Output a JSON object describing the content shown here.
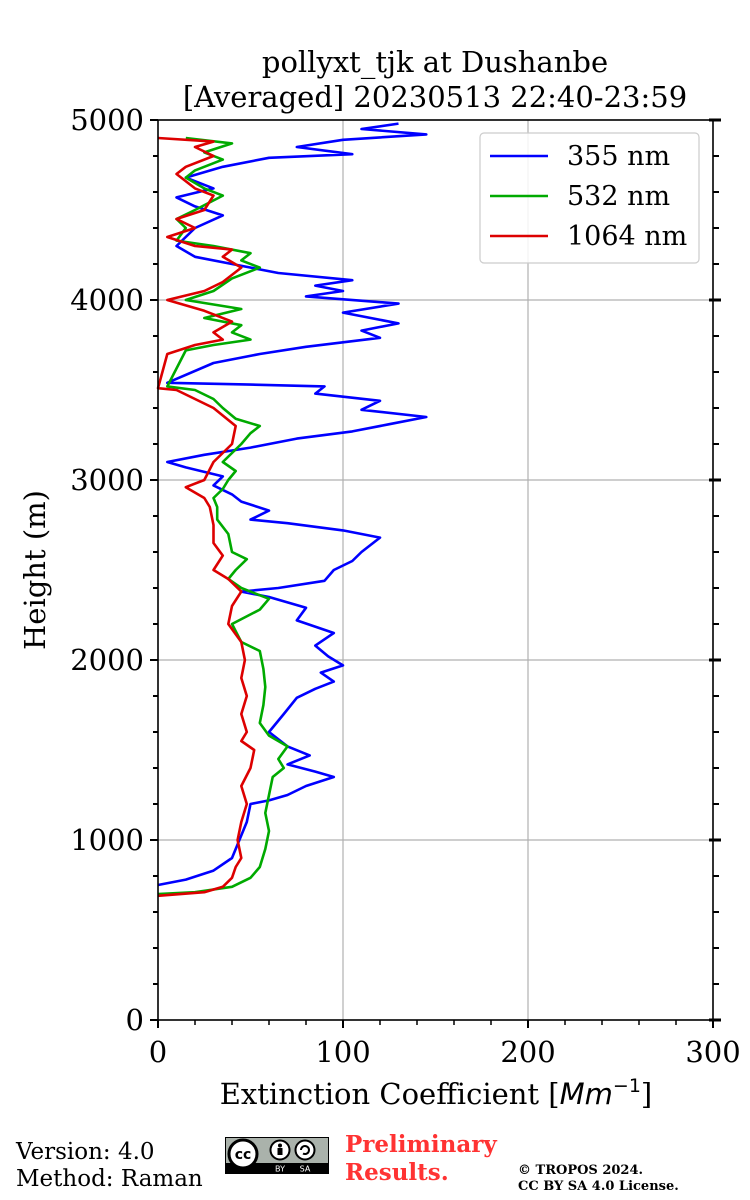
{
  "chart_data": {
    "type": "line",
    "title_line1": "pollyxt_tjk at Dushanbe",
    "title_line2": "[Averaged] 20230513 22:40-23:59",
    "xlabel_text": "Extinction Coefficient [",
    "xlabel_unit": "Mm",
    "xlabel_exp": "−1",
    "xlabel_close": "]",
    "ylabel": "Height (m)",
    "xlim": [
      0,
      300
    ],
    "ylim": [
      0,
      5000
    ],
    "xticks": [
      0,
      100,
      200,
      300
    ],
    "yticks": [
      0,
      1000,
      2000,
      3000,
      4000,
      5000
    ],
    "xtick_labels": [
      "0",
      "100",
      "200",
      "300"
    ],
    "ytick_labels": [
      "0",
      "1000",
      "2000",
      "3000",
      "4000",
      "5000"
    ],
    "y_minor_step": 200,
    "x_minor_step": 20,
    "grid": true,
    "legend_position": "top-right",
    "series": [
      {
        "name": "355 nm",
        "color": "#0000ff",
        "points": [
          [
            0,
            750
          ],
          [
            15,
            780
          ],
          [
            30,
            830
          ],
          [
            40,
            900
          ],
          [
            44,
            1000
          ],
          [
            48,
            1100
          ],
          [
            50,
            1200
          ],
          [
            60,
            1220
          ],
          [
            70,
            1250
          ],
          [
            80,
            1300
          ],
          [
            95,
            1350
          ],
          [
            85,
            1380
          ],
          [
            70,
            1420
          ],
          [
            82,
            1470
          ],
          [
            70,
            1520
          ],
          [
            60,
            1600
          ],
          [
            68,
            1700
          ],
          [
            75,
            1790
          ],
          [
            85,
            1840
          ],
          [
            95,
            1880
          ],
          [
            88,
            1930
          ],
          [
            100,
            1970
          ],
          [
            92,
            2020
          ],
          [
            85,
            2080
          ],
          [
            95,
            2150
          ],
          [
            75,
            2220
          ],
          [
            80,
            2290
          ],
          [
            60,
            2350
          ],
          [
            45,
            2380
          ],
          [
            65,
            2400
          ],
          [
            90,
            2440
          ],
          [
            95,
            2500
          ],
          [
            105,
            2550
          ],
          [
            110,
            2600
          ],
          [
            120,
            2680
          ],
          [
            100,
            2720
          ],
          [
            70,
            2760
          ],
          [
            50,
            2780
          ],
          [
            60,
            2830
          ],
          [
            45,
            2880
          ],
          [
            40,
            2920
          ],
          [
            30,
            2970
          ],
          [
            35,
            3020
          ],
          [
            15,
            3070
          ],
          [
            5,
            3100
          ],
          [
            25,
            3140
          ],
          [
            50,
            3180
          ],
          [
            75,
            3230
          ],
          [
            105,
            3270
          ],
          [
            125,
            3310
          ],
          [
            145,
            3350
          ],
          [
            110,
            3390
          ],
          [
            120,
            3440
          ],
          [
            85,
            3480
          ],
          [
            90,
            3520
          ],
          [
            50,
            3530
          ],
          [
            5,
            3540
          ],
          [
            30,
            3650
          ],
          [
            55,
            3700
          ],
          [
            80,
            3740
          ],
          [
            120,
            3790
          ],
          [
            110,
            3830
          ],
          [
            130,
            3870
          ],
          [
            100,
            3930
          ],
          [
            130,
            3980
          ],
          [
            80,
            4020
          ],
          [
            100,
            4050
          ],
          [
            85,
            4080
          ],
          [
            105,
            4110
          ],
          [
            65,
            4150
          ],
          [
            40,
            4200
          ],
          [
            20,
            4240
          ],
          [
            10,
            4300
          ],
          [
            20,
            4400
          ],
          [
            35,
            4470
          ],
          [
            20,
            4520
          ],
          [
            10,
            4570
          ],
          [
            30,
            4620
          ],
          [
            15,
            4680
          ],
          [
            35,
            4740
          ],
          [
            60,
            4790
          ],
          [
            105,
            4810
          ],
          [
            75,
            4850
          ],
          [
            100,
            4890
          ],
          [
            145,
            4920
          ],
          [
            110,
            4950
          ],
          [
            130,
            4980
          ]
        ]
      },
      {
        "name": "532 nm",
        "color": "#00aa00",
        "points": [
          [
            0,
            700
          ],
          [
            20,
            710
          ],
          [
            40,
            740
          ],
          [
            50,
            790
          ],
          [
            55,
            850
          ],
          [
            58,
            950
          ],
          [
            60,
            1050
          ],
          [
            58,
            1150
          ],
          [
            60,
            1250
          ],
          [
            62,
            1350
          ],
          [
            68,
            1400
          ],
          [
            65,
            1450
          ],
          [
            70,
            1520
          ],
          [
            60,
            1580
          ],
          [
            55,
            1650
          ],
          [
            57,
            1750
          ],
          [
            58,
            1850
          ],
          [
            57,
            1950
          ],
          [
            55,
            2050
          ],
          [
            45,
            2100
          ],
          [
            40,
            2200
          ],
          [
            55,
            2280
          ],
          [
            60,
            2340
          ],
          [
            50,
            2380
          ],
          [
            45,
            2400
          ],
          [
            38,
            2450
          ],
          [
            42,
            2500
          ],
          [
            48,
            2560
          ],
          [
            40,
            2600
          ],
          [
            38,
            2700
          ],
          [
            32,
            2780
          ],
          [
            32,
            2850
          ],
          [
            30,
            2900
          ],
          [
            35,
            2950
          ],
          [
            38,
            3000
          ],
          [
            42,
            3050
          ],
          [
            35,
            3100
          ],
          [
            40,
            3150
          ],
          [
            45,
            3200
          ],
          [
            50,
            3260
          ],
          [
            55,
            3300
          ],
          [
            42,
            3340
          ],
          [
            35,
            3400
          ],
          [
            30,
            3450
          ],
          [
            20,
            3500
          ],
          [
            5,
            3520
          ],
          [
            15,
            3720
          ],
          [
            30,
            3750
          ],
          [
            50,
            3780
          ],
          [
            40,
            3820
          ],
          [
            45,
            3860
          ],
          [
            25,
            3900
          ],
          [
            45,
            3950
          ],
          [
            15,
            4000
          ],
          [
            30,
            4050
          ],
          [
            40,
            4120
          ],
          [
            55,
            4180
          ],
          [
            45,
            4220
          ],
          [
            50,
            4260
          ],
          [
            30,
            4300
          ],
          [
            10,
            4330
          ],
          [
            15,
            4400
          ],
          [
            10,
            4450
          ],
          [
            20,
            4500
          ],
          [
            35,
            4580
          ],
          [
            25,
            4620
          ],
          [
            15,
            4680
          ],
          [
            20,
            4720
          ],
          [
            35,
            4780
          ],
          [
            25,
            4820
          ],
          [
            40,
            4870
          ],
          [
            15,
            4900
          ]
        ]
      },
      {
        "name": "1064 nm",
        "color": "#dd0000",
        "points": [
          [
            0,
            690
          ],
          [
            25,
            710
          ],
          [
            35,
            740
          ],
          [
            40,
            790
          ],
          [
            42,
            850
          ],
          [
            45,
            900
          ],
          [
            43,
            1000
          ],
          [
            45,
            1100
          ],
          [
            48,
            1200
          ],
          [
            45,
            1300
          ],
          [
            50,
            1400
          ],
          [
            52,
            1500
          ],
          [
            45,
            1550
          ],
          [
            48,
            1600
          ],
          [
            45,
            1700
          ],
          [
            48,
            1800
          ],
          [
            45,
            1900
          ],
          [
            47,
            2000
          ],
          [
            45,
            2100
          ],
          [
            38,
            2200
          ],
          [
            40,
            2300
          ],
          [
            45,
            2380
          ],
          [
            38,
            2450
          ],
          [
            30,
            2500
          ],
          [
            35,
            2580
          ],
          [
            30,
            2650
          ],
          [
            30,
            2750
          ],
          [
            28,
            2850
          ],
          [
            25,
            2900
          ],
          [
            15,
            2960
          ],
          [
            25,
            3000
          ],
          [
            30,
            3100
          ],
          [
            40,
            3200
          ],
          [
            42,
            3300
          ],
          [
            30,
            3400
          ],
          [
            20,
            3450
          ],
          [
            10,
            3500
          ],
          [
            0,
            3510
          ],
          [
            5,
            3700
          ],
          [
            20,
            3750
          ],
          [
            35,
            3780
          ],
          [
            30,
            3820
          ],
          [
            40,
            3880
          ],
          [
            25,
            3940
          ],
          [
            5,
            4000
          ],
          [
            25,
            4050
          ],
          [
            35,
            4100
          ],
          [
            45,
            4180
          ],
          [
            35,
            4240
          ],
          [
            40,
            4280
          ],
          [
            20,
            4300
          ],
          [
            5,
            4350
          ],
          [
            20,
            4400
          ],
          [
            10,
            4450
          ],
          [
            25,
            4500
          ],
          [
            30,
            4580
          ],
          [
            20,
            4620
          ],
          [
            10,
            4700
          ],
          [
            15,
            4740
          ],
          [
            30,
            4800
          ],
          [
            20,
            4850
          ],
          [
            30,
            4880
          ],
          [
            0,
            4900
          ]
        ]
      }
    ]
  },
  "footer": {
    "version": "Version: 4.0",
    "method": "Method: Raman",
    "prelim_line1": "Preliminary",
    "prelim_line2": "Results.",
    "copyright_line1": "© TROPOS 2024.",
    "copyright_line2": "CC BY SA 4.0 License.",
    "cc_badge_text": "cc",
    "cc_by": "BY",
    "cc_sa": "SA"
  }
}
